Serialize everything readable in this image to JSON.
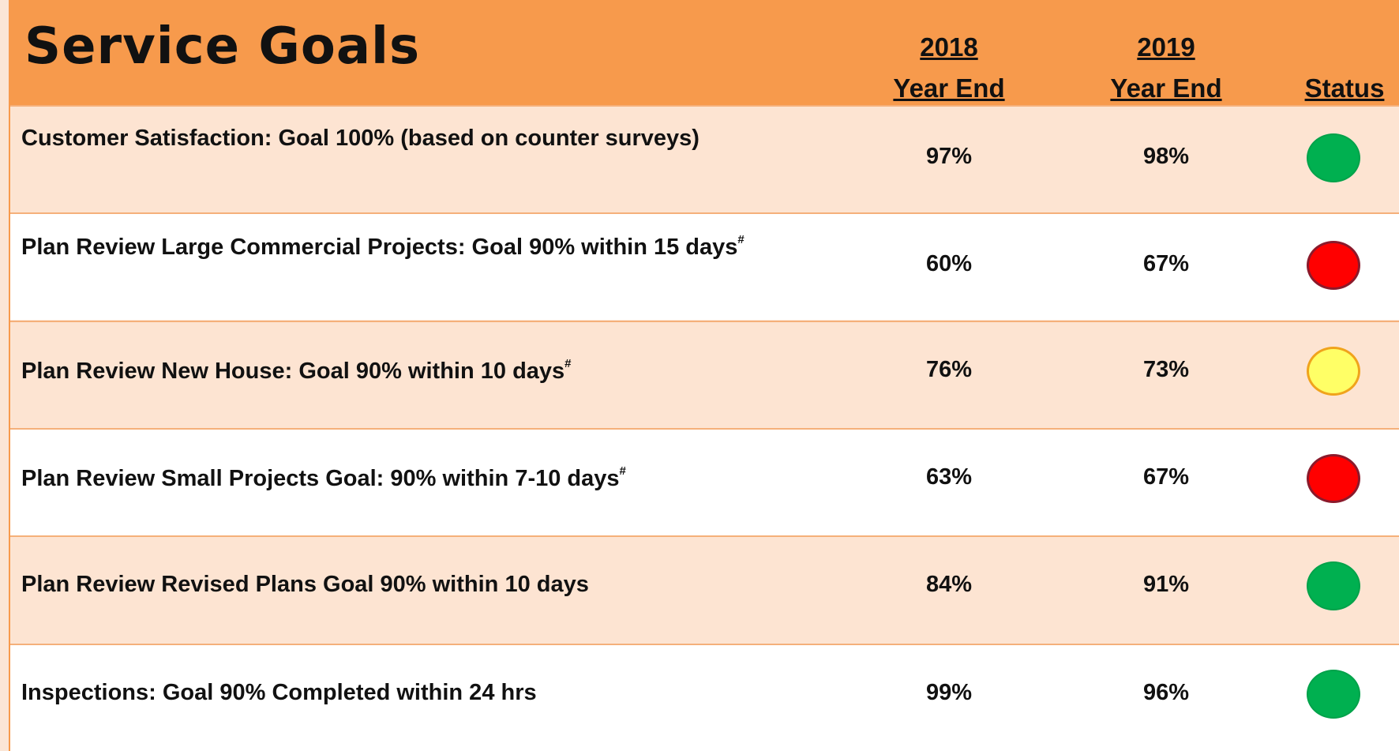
{
  "header": {
    "title": "Service Goals",
    "columns": [
      {
        "year": "2018",
        "label": "Year End"
      },
      {
        "year": "2019",
        "label": "Year End"
      },
      {
        "label": "Status"
      }
    ]
  },
  "table": {
    "rows": [
      {
        "goal": "Customer Satisfaction:  Goal 100%  (based on counter surveys)",
        "y2018": "97%",
        "y2019": "98%",
        "status": "green"
      },
      {
        "goal": "Plan Review Large Commercial Projects:  Goal 90% within 15 days",
        "note": "#",
        "y2018": "60%",
        "y2019": "67%",
        "status": "red"
      },
      {
        "goal": "Plan Review New House:  Goal 90% within 10 days",
        "note": "#",
        "y2018": "76%",
        "y2019": "73%",
        "status": "yellow"
      },
      {
        "goal": "Plan Review Small Projects Goal:  90% within 7-10 days",
        "note": "#",
        "y2018": "63%",
        "y2019": "67%",
        "status": "red"
      },
      {
        "goal": "Plan Review Revised Plans Goal 90% within 10 days",
        "y2018": "84%",
        "y2019": "91%",
        "status": "green"
      },
      {
        "goal": "Inspections:  Goal 90% Completed within 24 hrs",
        "y2018": "99%",
        "y2019": "96%",
        "status": "green"
      }
    ]
  }
}
